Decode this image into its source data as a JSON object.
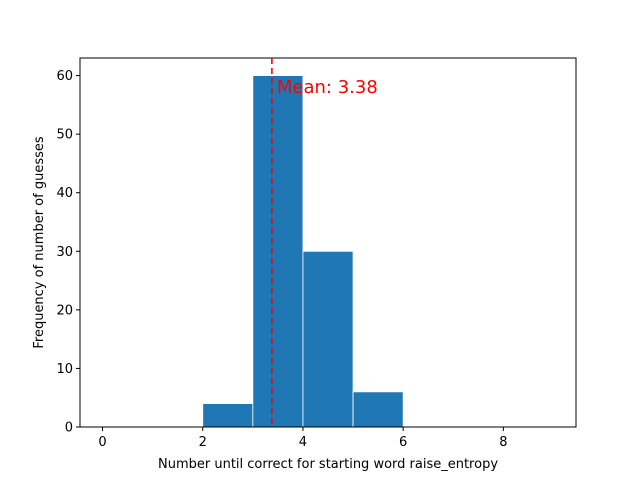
{
  "chart_data": {
    "type": "bar",
    "title": "",
    "xlabel": "Number until correct for starting word raise_entropy",
    "ylabel": "Frequency of number of guesses",
    "xlim": [
      -0.45,
      9.45
    ],
    "ylim": [
      0,
      63
    ],
    "xticks": [
      0,
      2,
      4,
      6,
      8
    ],
    "yticks": [
      0,
      10,
      20,
      30,
      40,
      50,
      60
    ],
    "grid": false,
    "bins": [
      {
        "x0": 2,
        "x1": 3,
        "value": 4
      },
      {
        "x0": 3,
        "x1": 4,
        "value": 60
      },
      {
        "x0": 4,
        "x1": 5,
        "value": 30
      },
      {
        "x0": 5,
        "x1": 6,
        "value": 6
      }
    ],
    "mean": 3.38,
    "mean_label": "Mean: 3.38",
    "bar_color": "#1f77b4",
    "mean_line_color": "#ff0000"
  }
}
